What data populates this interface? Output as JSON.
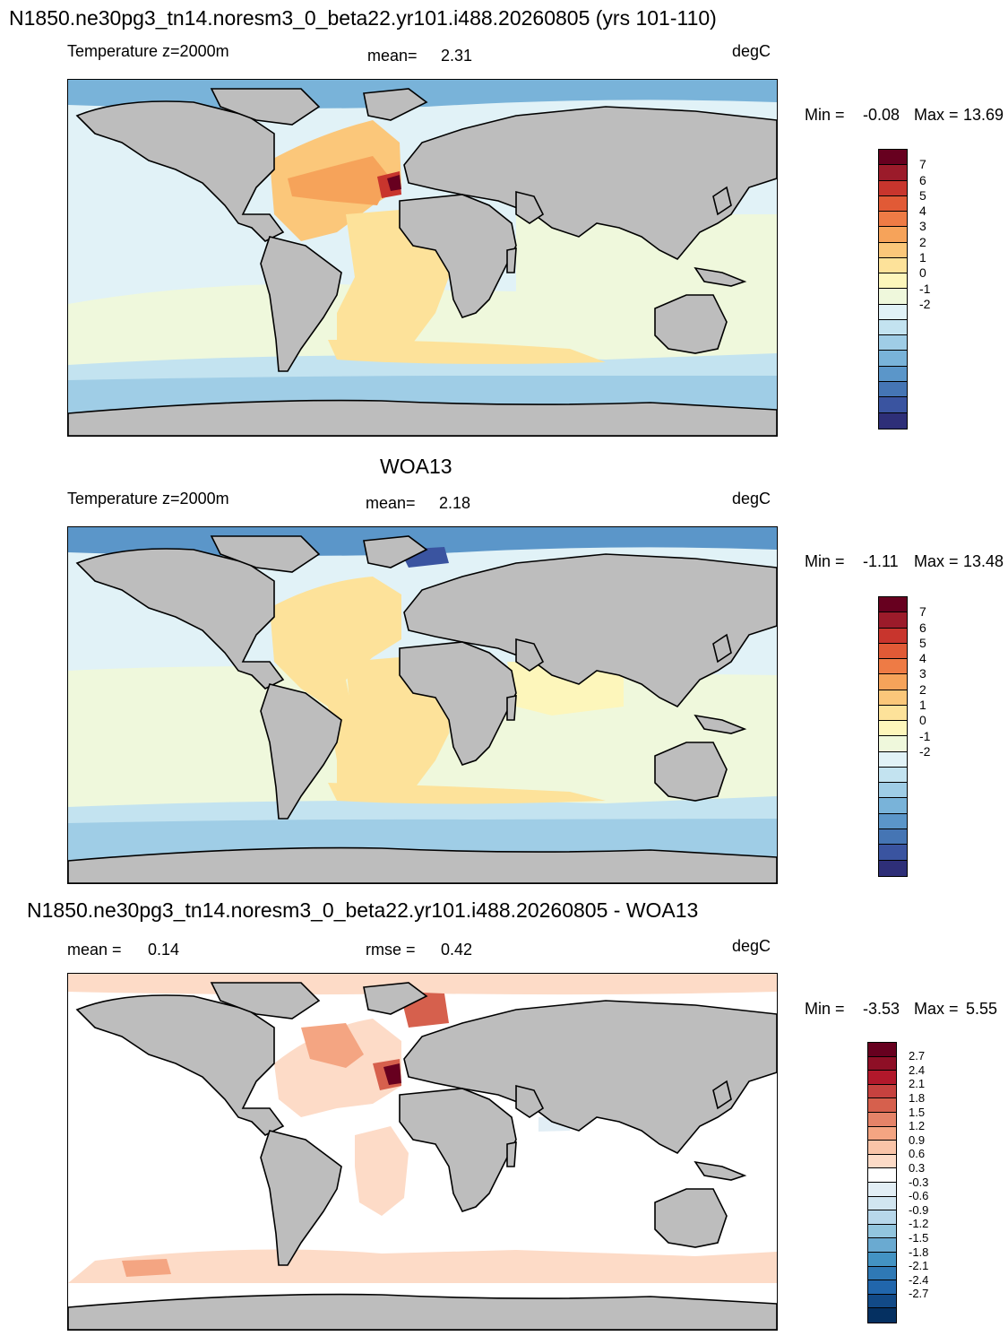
{
  "panel1": {
    "title": "N1850.ne30pg3_tn14.noresm3_0_beta22.yr101.i488.20260805 (yrs 101-110)",
    "field_label": "Temperature z=2000m",
    "mean_label": "mean=",
    "mean_value": "2.31",
    "units": "degC",
    "min_label": "Min =",
    "min_value": "-0.08",
    "max_label": "Max =",
    "max_value": "13.69"
  },
  "panel2": {
    "title": "WOA13",
    "field_label": "Temperature z=2000m",
    "mean_label": "mean=",
    "mean_value": "2.18",
    "units": "degC",
    "min_label": "Min =",
    "min_value": "-1.11",
    "max_label": "Max =",
    "max_value": "13.48"
  },
  "panel3": {
    "title": "N1850.ne30pg3_tn14.noresm3_0_beta22.yr101.i488.20260805 - WOA13",
    "mean_label": "mean =",
    "mean_value": "0.14",
    "rmse_label": "rmse =",
    "rmse_value": "0.42",
    "units": "degC",
    "min_label": "Min =",
    "min_value": "-3.53",
    "max_label": "Max =",
    "max_value": "5.55"
  },
  "temp_colorbar": {
    "colors_top_to_bottom": [
      "#67001f",
      "#9b1b2a",
      "#c8352d",
      "#e15a36",
      "#ee7b45",
      "#f6a35a",
      "#fbc77a",
      "#fde29a",
      "#fdf6bb",
      "#eff8dc",
      "#e1f2f7",
      "#c3e3f0",
      "#9fcde6",
      "#79b3d9",
      "#5b96c9",
      "#4575b4",
      "#3a54a0",
      "#2e2f78"
    ],
    "tick_labels": [
      "7",
      "6",
      "5",
      "4",
      "3",
      "2",
      "1",
      "0",
      "-1",
      "-2"
    ]
  },
  "diff_colorbar": {
    "colors_top_to_bottom": [
      "#67001f",
      "#8e0f26",
      "#b2182b",
      "#c6423f",
      "#d6604d",
      "#e58368",
      "#f4a582",
      "#f9c4a8",
      "#fddbc7",
      "#ffffff",
      "#e2eef5",
      "#d1e5f0",
      "#b7d7ea",
      "#92c5de",
      "#6aaad1",
      "#4393c3",
      "#2f79b5",
      "#2166ac",
      "#124a87",
      "#053061"
    ],
    "tick_labels": [
      "2.7",
      "2.4",
      "2.1",
      "1.8",
      "1.5",
      "1.2",
      "0.9",
      "0.6",
      "0.3",
      "-0.3",
      "-0.6",
      "-0.9",
      "-1.2",
      "-1.5",
      "-1.8",
      "-2.1",
      "-2.4",
      "-2.7"
    ]
  },
  "map_colors": {
    "land": "#bdbdbd",
    "coast": "#000000",
    "p1_pacific": "#e1f2f7",
    "p1_tropics": "#eff8dc",
    "p1_atlantic": "#fbc77a",
    "p1_atlantic_south": "#fde29a",
    "p1_atl_north": "#f6a35a",
    "p1_iberia": "#c8352d",
    "p1_med": "#67001f",
    "p1_so_light": "#c3e3f0",
    "p1_so_mid": "#9fcde6",
    "p1_arctic": "#79b3d9",
    "p2_pacific": "#e1f2f7",
    "p2_tropics": "#eff8dc",
    "p2_atlantic": "#fde29a",
    "p2_indian": "#fdf6bb",
    "p2_so_light": "#c3e3f0",
    "p2_so_mid": "#9fcde6",
    "p2_arctic": "#5b96c9",
    "p2_nordic": "#3a54a0",
    "p2_med": "#67001f",
    "p3_base": "#ffffff",
    "p3_light": "#fddbc7",
    "p3_mid": "#f4a582",
    "p3_strong": "#d6604d",
    "p3_hot": "#67001f",
    "p3_blue": "#e2eef5"
  }
}
